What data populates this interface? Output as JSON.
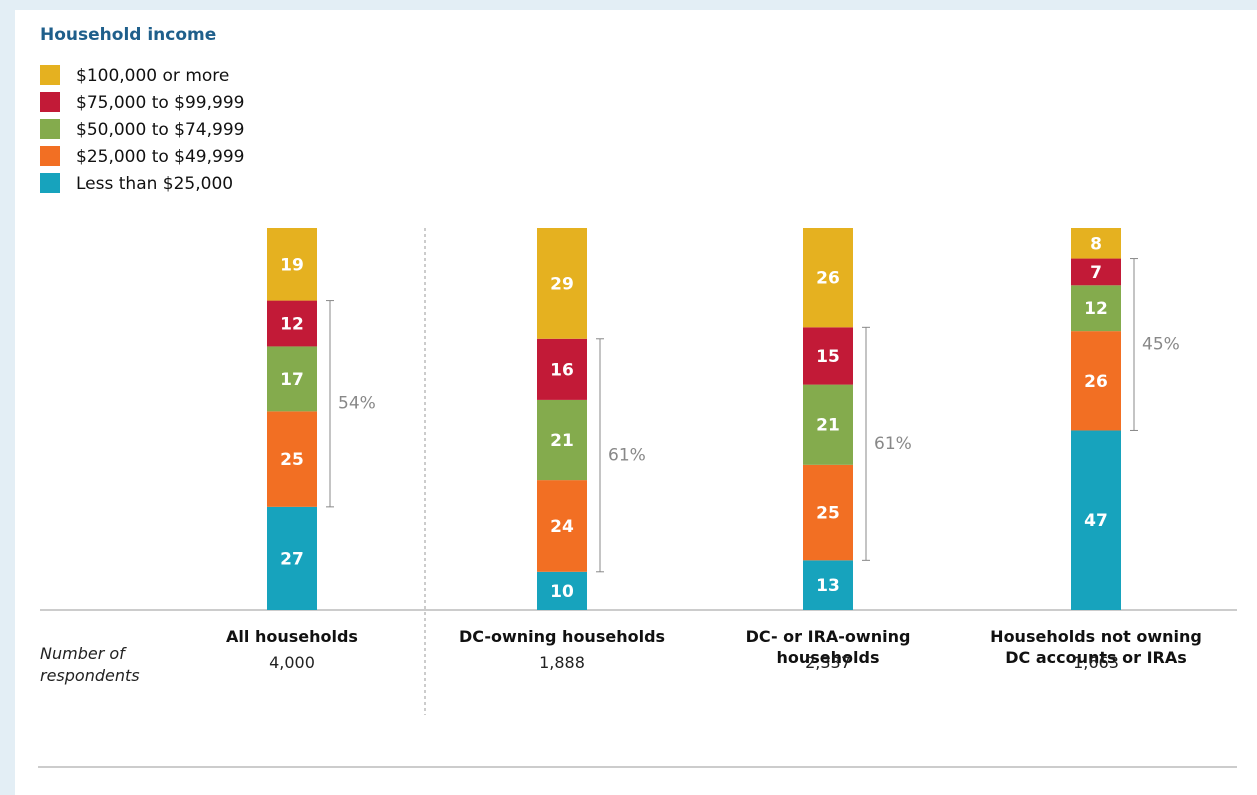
{
  "chart_data": {
    "type": "stacked_bar",
    "title": "Household income",
    "categories": [
      "All households",
      "DC-owning households",
      "DC- or IRA-owning households",
      "Households not owning DC accounts or IRAs"
    ],
    "series": [
      {
        "name": "Less than $25,000",
        "color": "#17a3bd",
        "values": [
          27,
          10,
          13,
          47
        ]
      },
      {
        "name": "$25,000 to $49,999",
        "color": "#f26f23",
        "values": [
          25,
          24,
          25,
          26
        ]
      },
      {
        "name": "$50,000 to $74,999",
        "color": "#84ab4d",
        "values": [
          17,
          21,
          21,
          12
        ]
      },
      {
        "name": "$75,000 to $99,999",
        "color": "#c21a37",
        "values": [
          12,
          16,
          15,
          7
        ]
      },
      {
        "name": "$100,000 or more",
        "color": "#e5b120",
        "values": [
          19,
          29,
          26,
          8
        ]
      }
    ],
    "bracket": {
      "values": [
        54,
        61,
        61,
        45
      ],
      "value_labels": [
        "54%",
        "61%",
        "61%",
        "45%"
      ]
    },
    "respondents": {
      "label": "Number of respondents",
      "values": [
        "4,000",
        "1,888",
        "2,337",
        "1,663"
      ]
    }
  }
}
